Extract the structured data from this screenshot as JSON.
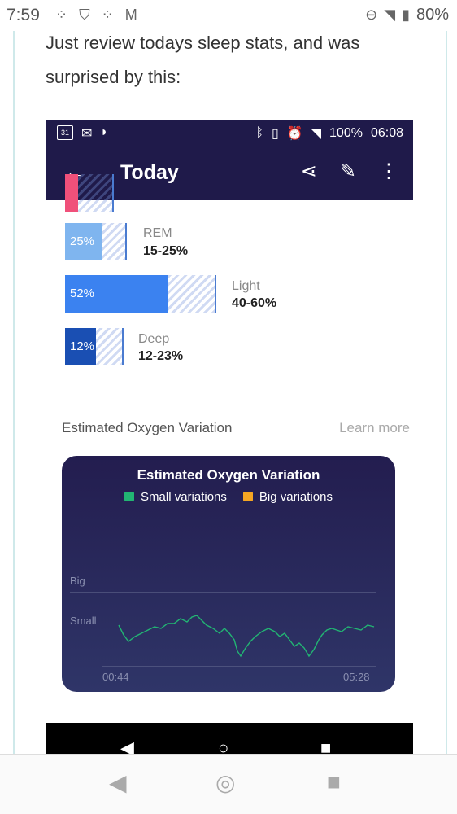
{
  "status_bar": {
    "time": "7:59",
    "battery": "80%"
  },
  "post": {
    "line1": "Just review todays sleep stats, and was",
    "line2": "surprised by this:"
  },
  "inner_status": {
    "calendar_day": "31",
    "battery": "100%",
    "time": "06:08"
  },
  "app_bar": {
    "title": "Today"
  },
  "stages": [
    {
      "pct": "25%",
      "label": "REM",
      "range": "15-25%"
    },
    {
      "pct": "52%",
      "label": "Light",
      "range": "40-60%"
    },
    {
      "pct": "12%",
      "label": "Deep",
      "range": "12-23%"
    }
  ],
  "oxygen": {
    "heading": "Estimated Oxygen Variation",
    "learn_more": "Learn more",
    "card_title": "Estimated Oxygen Variation",
    "legend_small": "Small variations",
    "legend_big": "Big variations",
    "axis_big": "Big",
    "axis_small": "Small",
    "x_start": "00:44",
    "x_end": "05:28",
    "colors": {
      "small": "#22b573",
      "big": "#f5a623",
      "line": "#22b573"
    }
  }
}
